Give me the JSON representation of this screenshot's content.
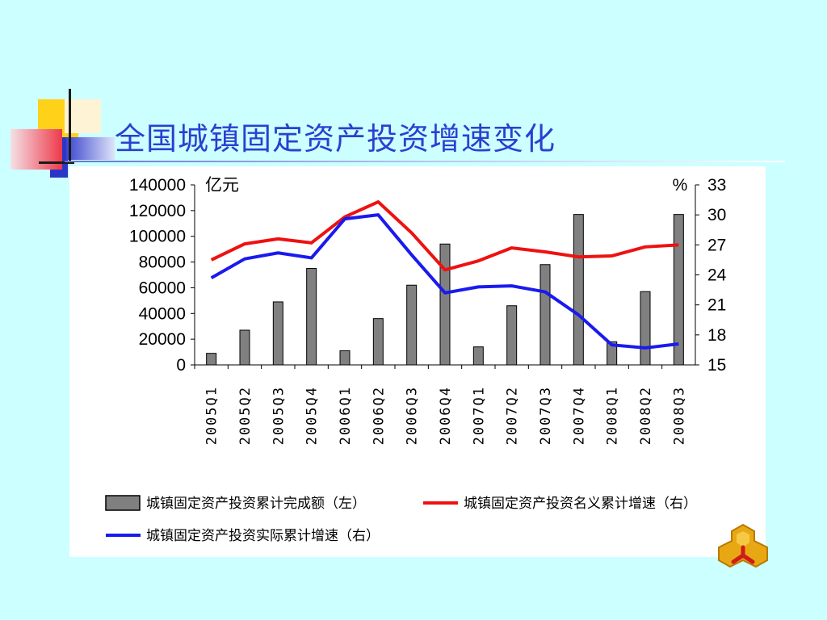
{
  "slide": {
    "title": "全国城镇固定资产投资增速变化"
  },
  "chart_data": {
    "type": "bar",
    "title": "全国城镇固定资产投资增速变化",
    "categories": [
      "2005Q1",
      "2005Q2",
      "2005Q3",
      "2005Q4",
      "2006Q1",
      "2006Q2",
      "2006Q3",
      "2006Q4",
      "2007Q1",
      "2007Q2",
      "2007Q3",
      "2007Q4",
      "2008Q1",
      "2008Q2",
      "2008Q3"
    ],
    "left_axis": {
      "unit": "亿元",
      "ylim": [
        0,
        140000
      ],
      "ticks": [
        "0",
        "20000",
        "40000",
        "60000",
        "80000",
        "100000",
        "120000",
        "140000"
      ]
    },
    "right_axis": {
      "unit": "%",
      "ylim": [
        15,
        33
      ],
      "ticks": [
        "15",
        "18",
        "21",
        "24",
        "27",
        "30",
        "33"
      ]
    },
    "series": [
      {
        "name": "城镇固定资产投资累计完成额（左）",
        "kind": "bar",
        "axis": "left",
        "color": "#808080",
        "values": [
          9000,
          27000,
          49000,
          75000,
          11000,
          36000,
          62000,
          94000,
          14000,
          46000,
          78000,
          117000,
          18000,
          57000,
          117000
        ]
      },
      {
        "name": "城镇固定资产投资名义累计增速（右）",
        "kind": "line",
        "axis": "right",
        "color": "#ee1111",
        "values": [
          25.5,
          27.1,
          27.6,
          27.2,
          29.8,
          31.3,
          28.2,
          24.5,
          25.4,
          26.7,
          26.3,
          25.8,
          25.9,
          26.8,
          27.0
        ]
      },
      {
        "name": "城镇固定资产投资实际累计增速（右）",
        "kind": "line",
        "axis": "right",
        "color": "#1a1aee",
        "values": [
          23.7,
          25.6,
          26.2,
          25.7,
          29.6,
          30.0,
          26.0,
          22.2,
          22.8,
          22.9,
          22.3,
          20.0,
          17.0,
          16.7,
          17.1
        ]
      }
    ],
    "legend_position": "bottom",
    "grid": false
  }
}
